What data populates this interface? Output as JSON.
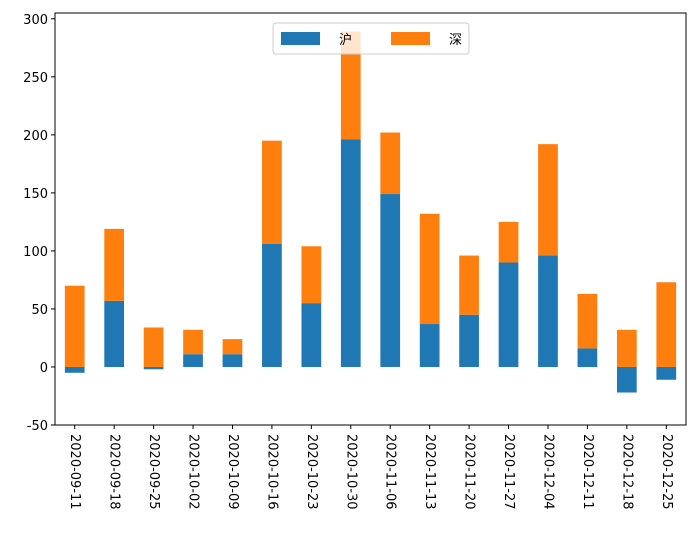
{
  "chart_data": {
    "type": "bar",
    "stacked": true,
    "title": "",
    "xlabel": "",
    "ylabel": "",
    "ylim": [
      -50,
      305
    ],
    "yticks": [
      -50,
      0,
      50,
      100,
      150,
      200,
      250,
      300
    ],
    "categories": [
      "2020-09-11",
      "2020-09-18",
      "2020-09-25",
      "2020-10-02",
      "2020-10-09",
      "2020-10-16",
      "2020-10-23",
      "2020-10-30",
      "2020-11-06",
      "2020-11-13",
      "2020-11-20",
      "2020-11-27",
      "2020-12-04",
      "2020-12-11",
      "2020-12-18",
      "2020-12-25"
    ],
    "series": [
      {
        "name": "沪",
        "color": "#1f77b4",
        "values": [
          -5,
          57,
          -2,
          11,
          11,
          106,
          55,
          196,
          149,
          37,
          45,
          90,
          96,
          16,
          -22,
          -11
        ]
      },
      {
        "name": "深",
        "color": "#ff7f0e",
        "values": [
          70,
          62,
          34,
          21,
          13,
          89,
          49,
          93,
          53,
          95,
          51,
          35,
          96,
          47,
          32,
          73
        ]
      }
    ],
    "legend": {
      "position": "top-center",
      "columns": 2
    }
  }
}
